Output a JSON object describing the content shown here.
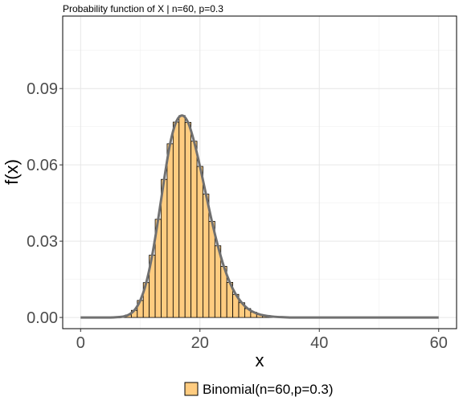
{
  "chart_data": {
    "type": "bar",
    "title": "Probability function of X | n=60, p=0.3",
    "xlabel": "x",
    "ylabel": "f(x)",
    "xlim": [
      -3,
      63
    ],
    "ylim": [
      -0.0044,
      0.1185
    ],
    "x_ticks": [
      0,
      20,
      40,
      60
    ],
    "y_ticks": [
      0.0,
      0.03,
      0.06,
      0.09
    ],
    "x_tick_labels": [
      "0",
      "20",
      "40",
      "60"
    ],
    "y_tick_labels": [
      "0.00",
      "0.03",
      "0.06",
      "0.09"
    ],
    "grid": true,
    "legend_position": "bottom",
    "series": [
      {
        "name": "Binomial(n=60,p=0.3)",
        "bar_color": "#ffcc80",
        "bar_outline": "#000000",
        "curve_color": "#707070",
        "x": [
          0,
          1,
          2,
          3,
          4,
          5,
          6,
          7,
          8,
          9,
          10,
          11,
          12,
          13,
          14,
          15,
          16,
          17,
          18,
          19,
          20,
          21,
          22,
          23,
          24,
          25,
          26,
          27,
          28,
          29,
          30,
          31,
          32,
          33,
          34,
          35,
          36,
          37,
          38,
          39,
          40,
          41,
          42,
          43,
          44,
          45,
          46,
          47,
          48,
          49,
          50,
          51,
          52,
          53,
          54,
          55,
          56,
          57,
          58,
          59,
          60
        ],
        "values": [
          0.0,
          0.0,
          0.0,
          0.0,
          0.0,
          0.0,
          0.0001,
          0.0003,
          0.001,
          0.0028,
          0.0067,
          0.0137,
          0.0245,
          0.0386,
          0.0543,
          0.0683,
          0.0768,
          0.0794,
          0.0767,
          0.0693,
          0.0594,
          0.0485,
          0.0378,
          0.0282,
          0.0201,
          0.0138,
          0.0091,
          0.0058,
          0.0035,
          0.0021,
          0.0012,
          0.0007,
          0.0004,
          0.0002,
          0.0001,
          0.0,
          0.0,
          0.0,
          0.0,
          0.0,
          0.0,
          0.0,
          0.0,
          0.0,
          0.0,
          0.0,
          0.0,
          0.0,
          0.0,
          0.0,
          0.0,
          0.0,
          0.0,
          0.0,
          0.0,
          0.0,
          0.0,
          0.0,
          0.0,
          0.0,
          0.0
        ]
      }
    ]
  }
}
